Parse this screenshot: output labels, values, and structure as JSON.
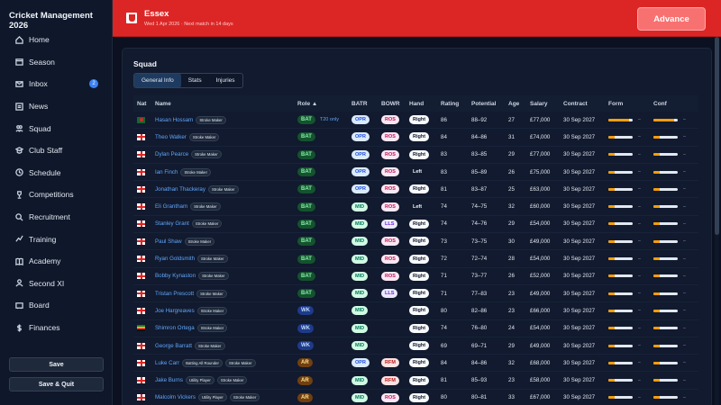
{
  "app": {
    "title": "Cricket Management 2026"
  },
  "sidebar": {
    "items": [
      {
        "label": "Home",
        "icon": "home-icon"
      },
      {
        "label": "Season",
        "icon": "calendar-icon"
      },
      {
        "label": "Inbox",
        "icon": "inbox-icon",
        "badge": "2"
      },
      {
        "label": "News",
        "icon": "news-icon"
      },
      {
        "label": "Squad",
        "icon": "users-icon"
      },
      {
        "label": "Club Staff",
        "icon": "staff-icon"
      },
      {
        "label": "Schedule",
        "icon": "schedule-icon"
      },
      {
        "label": "Competitions",
        "icon": "trophy-icon"
      },
      {
        "label": "Recruitment",
        "icon": "search-icon"
      },
      {
        "label": "Training",
        "icon": "training-icon"
      },
      {
        "label": "Academy",
        "icon": "book-icon"
      },
      {
        "label": "Second XI",
        "icon": "team-icon"
      },
      {
        "label": "Board",
        "icon": "board-icon"
      },
      {
        "label": "Finances",
        "icon": "dollar-icon"
      }
    ],
    "save_label": "Save",
    "save_quit_label": "Save & Quit"
  },
  "header": {
    "club_name": "Essex",
    "subtitle": "Wed 1 Apr 2026 · Next match in 14 days",
    "advance_label": "Advance",
    "accent": "#dc2626"
  },
  "squad": {
    "title": "Squad",
    "tabs": [
      "General Info",
      "Stats",
      "Injuries"
    ],
    "active_tab": "General Info",
    "columns": [
      "Nat",
      "Name",
      "Role ▲",
      "BATR",
      "BOWR",
      "Hand",
      "Rating",
      "Potential",
      "Age",
      "Salary",
      "Contract",
      "Form",
      "Conf"
    ],
    "rows": [
      {
        "nat": "ban",
        "name": "Hasan Hossam",
        "tags": [
          "Stroke Maker"
        ],
        "role": "BAT",
        "role_note": "T20 only",
        "batr": "OPR",
        "bowr": "ROS",
        "hand": "Right",
        "rating": "86",
        "potential": "88–92",
        "age": "27",
        "salary": "£77,000",
        "contract": "30 Sep 2027",
        "form": 0.85,
        "form_text": "–",
        "conf": 0.85,
        "conf_text": "–"
      },
      {
        "nat": "eng",
        "name": "Theo Walker",
        "tags": [
          "Stroke Maker"
        ],
        "role": "BAT",
        "role_note": "",
        "batr": "OPR",
        "bowr": "ROS",
        "hand": "Right",
        "rating": "84",
        "potential": "84–86",
        "age": "31",
        "salary": "£74,000",
        "contract": "30 Sep 2027",
        "form": 0.25,
        "form_text": "–",
        "conf": 0.25,
        "conf_text": "–"
      },
      {
        "nat": "eng",
        "name": "Dylan Pearce",
        "tags": [
          "Stroke Maker"
        ],
        "role": "BAT",
        "role_note": "",
        "batr": "OPR",
        "bowr": "ROS",
        "hand": "Right",
        "rating": "83",
        "potential": "83–85",
        "age": "29",
        "salary": "£77,000",
        "contract": "30 Sep 2027",
        "form": 0.25,
        "form_text": "–",
        "conf": 0.25,
        "conf_text": "–"
      },
      {
        "nat": "eng",
        "name": "Ian Finch",
        "tags": [
          "Stroke Maker"
        ],
        "role": "BAT",
        "role_note": "",
        "batr": "OPR",
        "bowr": "ROS",
        "hand": "Left",
        "rating": "83",
        "potential": "85–89",
        "age": "26",
        "salary": "£75,000",
        "contract": "30 Sep 2027",
        "form": 0.25,
        "form_text": "–",
        "conf": 0.25,
        "conf_text": "–"
      },
      {
        "nat": "eng",
        "name": "Jonathan Thackeray",
        "tags": [
          "Stroke Maker"
        ],
        "role": "BAT",
        "role_note": "",
        "batr": "OPR",
        "bowr": "ROS",
        "hand": "Right",
        "rating": "81",
        "potential": "83–87",
        "age": "25",
        "salary": "£63,000",
        "contract": "30 Sep 2027",
        "form": 0.25,
        "form_text": "–",
        "conf": 0.25,
        "conf_text": "–"
      },
      {
        "nat": "eng",
        "name": "Eli Grantham",
        "tags": [
          "Stroke Maker"
        ],
        "role": "BAT",
        "role_note": "",
        "batr": "MID",
        "bowr": "ROS",
        "hand": "Left",
        "rating": "74",
        "potential": "74–75",
        "age": "32",
        "salary": "£60,000",
        "contract": "30 Sep 2027",
        "form": 0.25,
        "form_text": "–",
        "conf": 0.25,
        "conf_text": "–"
      },
      {
        "nat": "eng",
        "name": "Stanley Grant",
        "tags": [
          "Stroke Maker"
        ],
        "role": "BAT",
        "role_note": "",
        "batr": "MID",
        "bowr": "LLS",
        "hand": "Right",
        "rating": "74",
        "potential": "74–76",
        "age": "29",
        "salary": "£54,000",
        "contract": "30 Sep 2027",
        "form": 0.25,
        "form_text": "–",
        "conf": 0.25,
        "conf_text": "–"
      },
      {
        "nat": "eng",
        "name": "Paul Shaw",
        "tags": [
          "Stroke Maker"
        ],
        "role": "BAT",
        "role_note": "",
        "batr": "MID",
        "bowr": "ROS",
        "hand": "Right",
        "rating": "73",
        "potential": "73–75",
        "age": "30",
        "salary": "£49,000",
        "contract": "30 Sep 2027",
        "form": 0.25,
        "form_text": "–",
        "conf": 0.25,
        "conf_text": "–"
      },
      {
        "nat": "eng",
        "name": "Ryan Goldsmith",
        "tags": [
          "Stroke Maker"
        ],
        "role": "BAT",
        "role_note": "",
        "batr": "MID",
        "bowr": "ROS",
        "hand": "Right",
        "rating": "72",
        "potential": "72–74",
        "age": "28",
        "salary": "£54,000",
        "contract": "30 Sep 2027",
        "form": 0.25,
        "form_text": "–",
        "conf": 0.25,
        "conf_text": "–"
      },
      {
        "nat": "eng",
        "name": "Bobby Kynaston",
        "tags": [
          "Stroke Maker"
        ],
        "role": "BAT",
        "role_note": "",
        "batr": "MID",
        "bowr": "ROS",
        "hand": "Right",
        "rating": "71",
        "potential": "73–77",
        "age": "26",
        "salary": "£52,000",
        "contract": "30 Sep 2027",
        "form": 0.25,
        "form_text": "–",
        "conf": 0.25,
        "conf_text": "–"
      },
      {
        "nat": "eng",
        "name": "Tristan Prescott",
        "tags": [
          "Stroke Maker"
        ],
        "role": "BAT",
        "role_note": "",
        "batr": "MID",
        "bowr": "LLS",
        "hand": "Right",
        "rating": "71",
        "potential": "77–83",
        "age": "23",
        "salary": "£49,000",
        "contract": "30 Sep 2027",
        "form": 0.25,
        "form_text": "–",
        "conf": 0.25,
        "conf_text": "–"
      },
      {
        "nat": "eng",
        "name": "Joe Hargreaves",
        "tags": [
          "Stroke Maker"
        ],
        "role": "WK",
        "role_note": "",
        "batr": "MID",
        "bowr": "",
        "hand": "Right",
        "rating": "80",
        "potential": "82–86",
        "age": "23",
        "salary": "£66,000",
        "contract": "30 Sep 2027",
        "form": 0.25,
        "form_text": "–",
        "conf": 0.25,
        "conf_text": "–"
      },
      {
        "nat": "zim",
        "name": "Shimron Ortega",
        "tags": [
          "Stroke Maker"
        ],
        "role": "WK",
        "role_note": "",
        "batr": "MID",
        "bowr": "",
        "hand": "Right",
        "rating": "74",
        "potential": "76–80",
        "age": "24",
        "salary": "£54,000",
        "contract": "30 Sep 2027",
        "form": 0.25,
        "form_text": "–",
        "conf": 0.25,
        "conf_text": "–"
      },
      {
        "nat": "eng",
        "name": "George Barratt",
        "tags": [
          "Stroke Maker"
        ],
        "role": "WK",
        "role_note": "",
        "batr": "MID",
        "bowr": "",
        "hand": "Right",
        "rating": "69",
        "potential": "69–71",
        "age": "29",
        "salary": "£49,000",
        "contract": "30 Sep 2027",
        "form": 0.25,
        "form_text": "–",
        "conf": 0.25,
        "conf_text": "–"
      },
      {
        "nat": "eng",
        "name": "Luke Carr",
        "tags": [
          "Batting All Rounder",
          "Stroke Maker"
        ],
        "role": "AR",
        "role_note": "",
        "batr": "OPR",
        "bowr": "RFM",
        "hand": "Right",
        "rating": "84",
        "potential": "84–86",
        "age": "32",
        "salary": "£68,000",
        "contract": "30 Sep 2027",
        "form": 0.25,
        "form_text": "–",
        "conf": 0.25,
        "conf_text": "–"
      },
      {
        "nat": "eng",
        "name": "Jake Burns",
        "tags": [
          "Utility Player",
          "Stroke Maker"
        ],
        "role": "AR",
        "role_note": "",
        "batr": "MID",
        "bowr": "RFM",
        "hand": "Right",
        "rating": "81",
        "potential": "85–93",
        "age": "23",
        "salary": "£58,000",
        "contract": "30 Sep 2027",
        "form": 0.25,
        "form_text": "–",
        "conf": 0.25,
        "conf_text": "–"
      },
      {
        "nat": "eng",
        "name": "Malcolm Vickers",
        "tags": [
          "Utility Player",
          "Stroke Maker"
        ],
        "role": "AR",
        "role_note": "",
        "batr": "MID",
        "bowr": "ROS",
        "hand": "Right",
        "rating": "80",
        "potential": "80–81",
        "age": "33",
        "salary": "£67,000",
        "contract": "30 Sep 2027",
        "form": 0.25,
        "form_text": "–",
        "conf": 0.25,
        "conf_text": "–"
      }
    ]
  }
}
